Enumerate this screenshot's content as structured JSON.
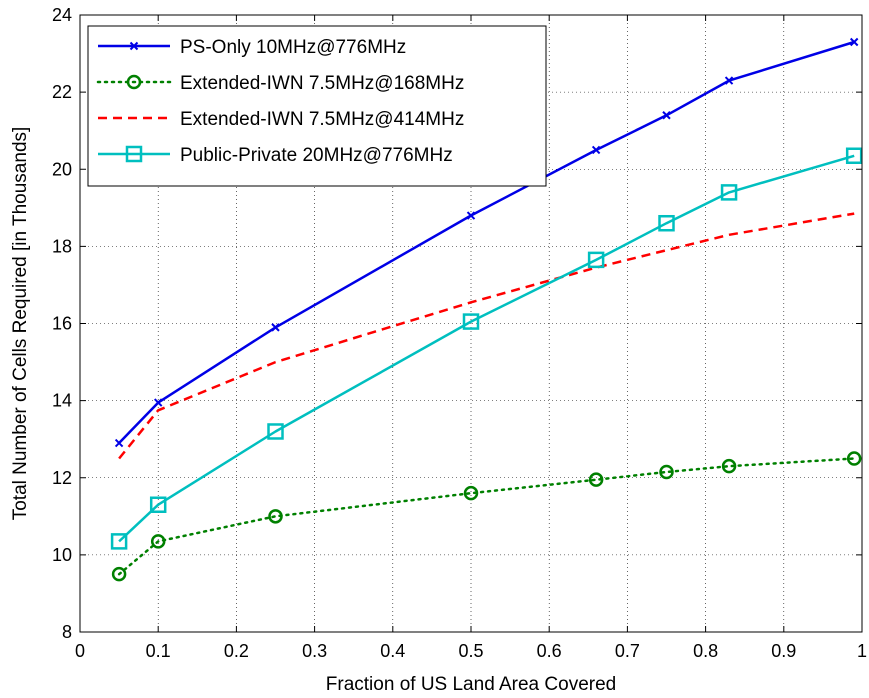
{
  "chart_data": {
    "type": "line",
    "xlabel": "Fraction of US Land Area Covered",
    "ylabel": "Total Number of Cells Required [in Thousands]",
    "xlim": [
      0,
      1
    ],
    "ylim": [
      8,
      24
    ],
    "xticks": [
      0,
      0.1,
      0.2,
      0.3,
      0.4,
      0.5,
      0.6,
      0.7,
      0.8,
      0.9,
      1
    ],
    "yticks": [
      8,
      10,
      12,
      14,
      16,
      18,
      20,
      22,
      24
    ],
    "xtick_labels": [
      "0",
      "0.1",
      "0.2",
      "0.3",
      "0.4",
      "0.5",
      "0.6",
      "0.7",
      "0.8",
      "0.9",
      "1"
    ],
    "ytick_labels": [
      "8",
      "10",
      "12",
      "14",
      "16",
      "18",
      "20",
      "22",
      "24"
    ],
    "grid": true,
    "legend_position": "top-left",
    "series": [
      {
        "name": "PS-Only 10MHz@776MHz",
        "color": "#0000e6",
        "line_style": "solid",
        "marker": "x",
        "x": [
          0.05,
          0.1,
          0.25,
          0.5,
          0.66,
          0.75,
          0.83,
          0.99
        ],
        "y": [
          12.9,
          13.95,
          15.9,
          18.8,
          20.5,
          21.4,
          22.3,
          23.3
        ]
      },
      {
        "name": "Extended-IWN 7.5MHz@168MHz",
        "color": "#008000",
        "line_style": "dotted",
        "marker": "circle",
        "x": [
          0.05,
          0.1,
          0.25,
          0.5,
          0.66,
          0.75,
          0.83,
          0.99
        ],
        "y": [
          9.5,
          10.35,
          11.0,
          11.6,
          11.95,
          12.15,
          12.3,
          12.5
        ]
      },
      {
        "name": "Extended-IWN 7.5MHz@414MHz",
        "color": "#ff0000",
        "line_style": "dashed",
        "marker": "none",
        "x": [
          0.05,
          0.1,
          0.25,
          0.5,
          0.66,
          0.75,
          0.83,
          0.99
        ],
        "y": [
          12.5,
          13.75,
          15.0,
          16.55,
          17.45,
          17.9,
          18.3,
          18.85
        ]
      },
      {
        "name": "Public-Private 20MHz@776MHz",
        "color": "#00bfbf",
        "line_style": "solid",
        "marker": "square",
        "x": [
          0.05,
          0.1,
          0.25,
          0.5,
          0.66,
          0.75,
          0.83,
          0.99
        ],
        "y": [
          10.35,
          11.3,
          13.2,
          16.05,
          17.65,
          18.6,
          19.4,
          20.35
        ]
      }
    ]
  }
}
